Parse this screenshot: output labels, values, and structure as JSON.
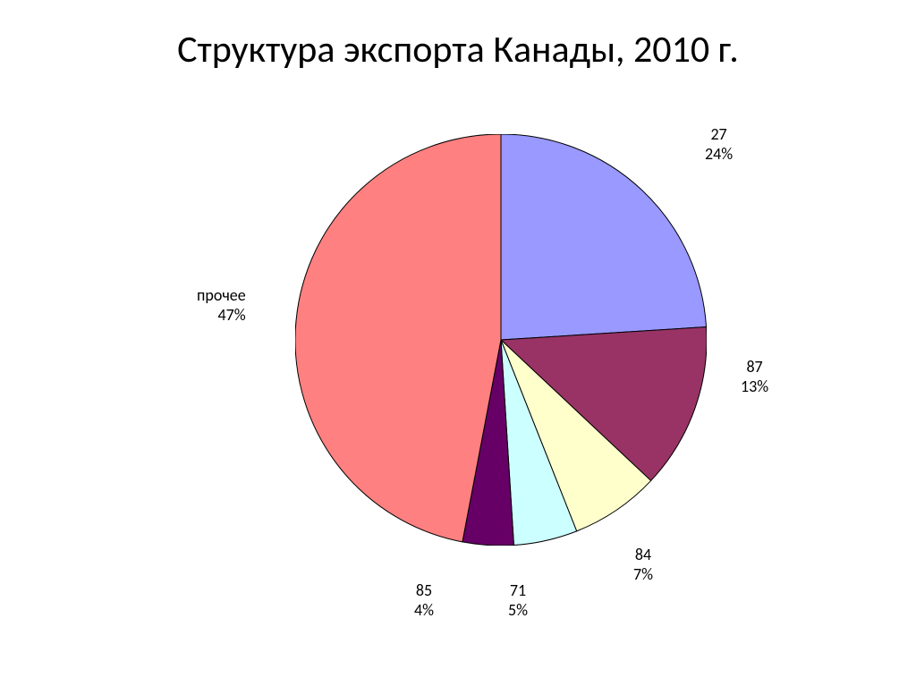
{
  "title": "Структура экспорта Канады, 2010 г.",
  "chart": {
    "type": "pie",
    "background_color": "#ffffff",
    "title_fontsize": 42,
    "title_color": "#000000",
    "label_fontsize": 18,
    "label_color": "#000000",
    "stroke_color": "#000000",
    "stroke_width": 1,
    "radius": 230,
    "start_angle_deg": -90,
    "slices": [
      {
        "name": "27",
        "value": 24,
        "color": "#9999ff",
        "label_line1": "27",
        "label_line2": "24%"
      },
      {
        "name": "87",
        "value": 13,
        "color": "#993366",
        "label_line1": "87",
        "label_line2": "13%"
      },
      {
        "name": "84",
        "value": 7,
        "color": "#ffffcc",
        "label_line1": "84",
        "label_line2": "7%"
      },
      {
        "name": "71",
        "value": 5,
        "color": "#ccffff",
        "label_line1": "71",
        "label_line2": "5%"
      },
      {
        "name": "85",
        "value": 4,
        "color": "#660066",
        "label_line1": "85",
        "label_line2": "4%"
      },
      {
        "name": "прочее",
        "value": 47,
        "color": "#ff8080",
        "label_line1": "прочее",
        "label_line2": "47%"
      }
    ]
  }
}
